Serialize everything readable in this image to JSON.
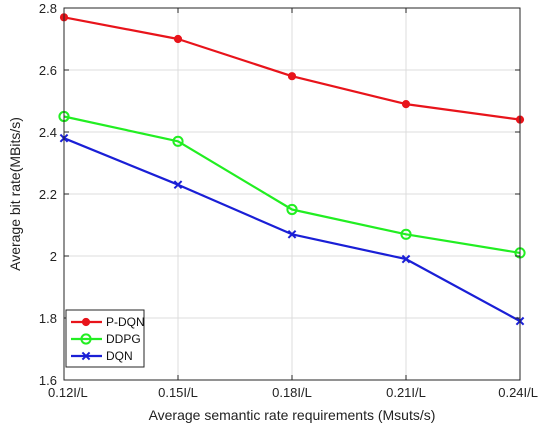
{
  "chart_data": {
    "type": "line",
    "title": "",
    "xlabel": "Average semantic rate requirements (Msuts/s)",
    "ylabel": "Average bit rate(MBits/s)",
    "categories": [
      "0.12I/L",
      "0.15I/L",
      "0.18I/L",
      "0.21I/L",
      "0.24I/L"
    ],
    "ylim": [
      1.6,
      2.8
    ],
    "yticks": [
      1.6,
      1.8,
      2,
      2.2,
      2.4,
      2.6,
      2.8
    ],
    "grid": true,
    "legend_position": "bottom-left",
    "series": [
      {
        "name": "P-DQN",
        "values": [
          2.77,
          2.7,
          2.58,
          2.49,
          2.44
        ],
        "color": "#e8141b",
        "marker": "dot"
      },
      {
        "name": "DDPG",
        "values": [
          2.45,
          2.37,
          2.15,
          2.07,
          2.01
        ],
        "color": "#22ee22",
        "marker": "circle"
      },
      {
        "name": "DQN",
        "values": [
          2.38,
          2.23,
          2.07,
          1.99,
          1.79
        ],
        "color": "#1a1fd6",
        "marker": "x"
      }
    ]
  }
}
